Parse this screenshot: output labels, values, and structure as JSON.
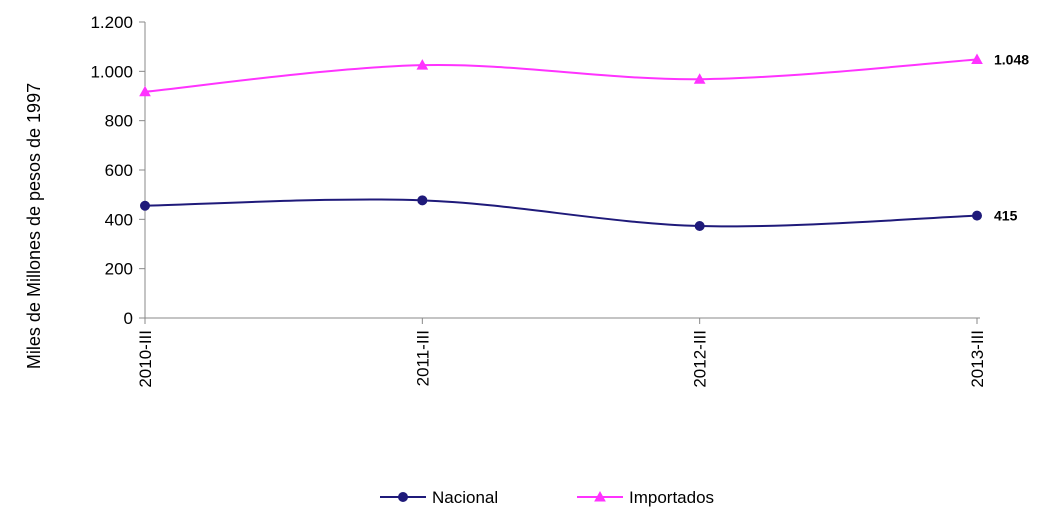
{
  "chart_data": {
    "type": "line",
    "title": "",
    "xlabel": "",
    "ylabel": "Miles de Millones de pesos de 1997",
    "categories": [
      "2010-III",
      "2011-III",
      "2012-III",
      "2013-III"
    ],
    "ylim": [
      0,
      1200
    ],
    "yticks": [
      0,
      200,
      400,
      600,
      800,
      1000,
      1200
    ],
    "ytick_labels": [
      "0",
      "200",
      "400",
      "600",
      "800",
      "1.000",
      "1.200"
    ],
    "grid": false,
    "legend_position": "bottom",
    "smooth": true,
    "series": [
      {
        "name": "Nacional",
        "values": [
          455,
          477,
          373,
          415
        ],
        "color": "#1f1a7a",
        "marker": "circle",
        "end_label": "415"
      },
      {
        "name": "Importados",
        "values": [
          917,
          1025,
          968,
          1048
        ],
        "color": "#ff33ff",
        "marker": "triangle",
        "end_label": "1.048"
      }
    ]
  }
}
